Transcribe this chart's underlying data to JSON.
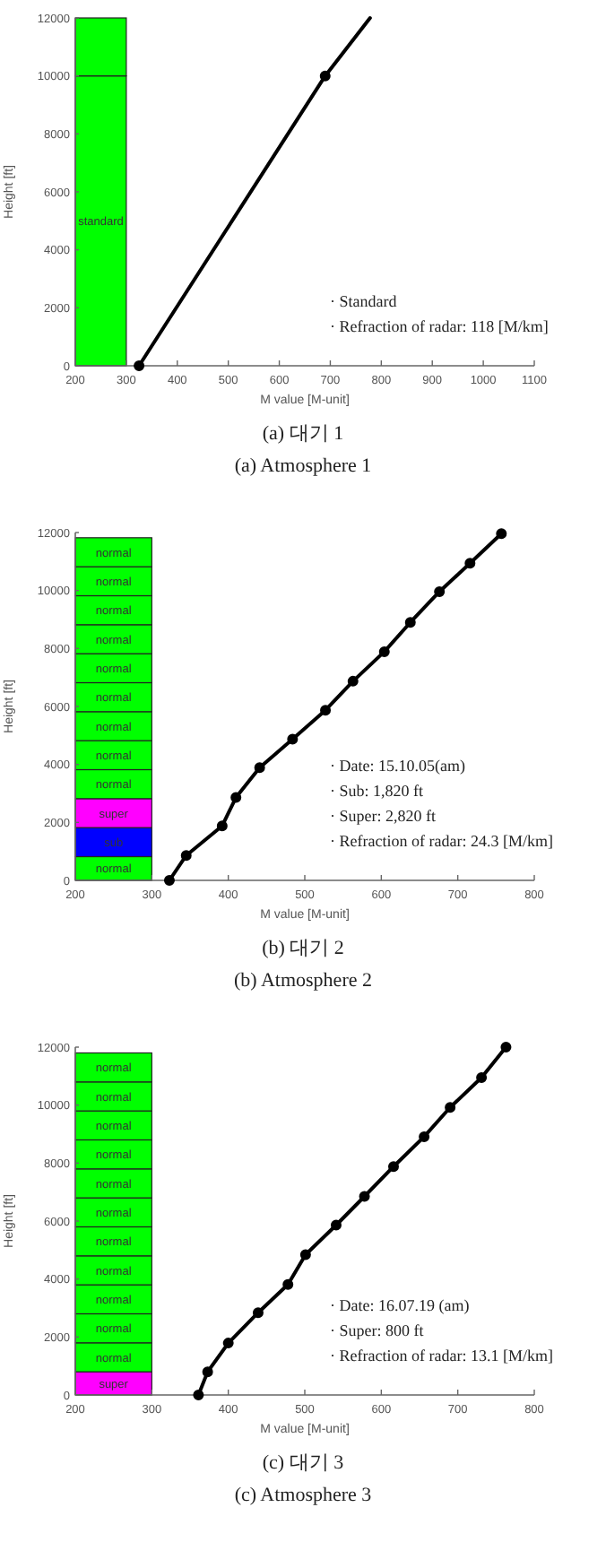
{
  "chart_data": [
    {
      "type": "line",
      "title": "(a) 대기 1",
      "subtitle": "(a) Atmosphere 1",
      "xlabel": "M value [M-unit]",
      "ylabel": "Height [ft]",
      "xlim": [
        200,
        1100
      ],
      "xticks": [
        200,
        300,
        400,
        500,
        600,
        700,
        800,
        900,
        1000,
        1100
      ],
      "ylim": [
        0,
        12000
      ],
      "yticks": [
        0,
        2000,
        4000,
        6000,
        8000,
        10000,
        12000
      ],
      "bands": [
        {
          "axis": "y",
          "from": 0,
          "to": 10000,
          "label": "standard",
          "color": "#00ff00"
        },
        {
          "axis": "y",
          "from": 10000,
          "to": 12000,
          "label": null,
          "color": "#00ff00"
        }
      ],
      "series": [
        {
          "type": "line",
          "color": "#000000",
          "marker": "none",
          "x": [
            325,
            690,
            778
          ],
          "values": [
            0,
            10000,
            12000
          ]
        },
        {
          "type": "scatter",
          "color": "#000000",
          "marker": "circle",
          "x": [
            325,
            690
          ],
          "values": [
            0,
            10000
          ]
        }
      ],
      "annotations": [
        "· Standard",
        "· Refraction of radar: 118 [M/km]"
      ]
    },
    {
      "type": "line",
      "title": "(b) 대기 2",
      "subtitle": "(b) Atmosphere 2",
      "xlabel": "M value [M-unit]",
      "ylabel": "Height [ft]",
      "xlim": [
        200,
        800
      ],
      "xticks": [
        200,
        300,
        400,
        500,
        600,
        700,
        800
      ],
      "ylim": [
        0,
        12000
      ],
      "yticks": [
        0,
        2000,
        4000,
        6000,
        8000,
        10000,
        12000
      ],
      "bands": [
        {
          "axis": "y",
          "from": 0,
          "to": 820,
          "label": "normal",
          "color": "#00ff00"
        },
        {
          "axis": "y",
          "from": 820,
          "to": 1820,
          "label": "sub",
          "color": "#0000ff"
        },
        {
          "axis": "y",
          "from": 1820,
          "to": 2820,
          "label": "super",
          "color": "#ff00ff"
        },
        {
          "axis": "y",
          "from": 2820,
          "to": 3820,
          "label": "normal",
          "color": "#00ff00"
        },
        {
          "axis": "y",
          "from": 3820,
          "to": 4820,
          "label": "normal",
          "color": "#00ff00"
        },
        {
          "axis": "y",
          "from": 4820,
          "to": 5820,
          "label": "normal",
          "color": "#00ff00"
        },
        {
          "axis": "y",
          "from": 5820,
          "to": 6820,
          "label": "normal",
          "color": "#00ff00"
        },
        {
          "axis": "y",
          "from": 6820,
          "to": 7820,
          "label": "normal",
          "color": "#00ff00"
        },
        {
          "axis": "y",
          "from": 7820,
          "to": 8820,
          "label": "normal",
          "color": "#00ff00"
        },
        {
          "axis": "y",
          "from": 8820,
          "to": 9820,
          "label": "normal",
          "color": "#00ff00"
        },
        {
          "axis": "y",
          "from": 9820,
          "to": 10820,
          "label": "normal",
          "color": "#00ff00"
        },
        {
          "axis": "y",
          "from": 10820,
          "to": 11820,
          "label": "normal",
          "color": "#00ff00"
        }
      ],
      "marker": "circle",
      "series": [
        {
          "type": "line",
          "color": "#000000",
          "x": [
            323,
            345,
            392,
            410,
            441,
            484,
            527,
            563,
            604,
            638,
            676,
            716,
            757
          ],
          "values": [
            0,
            860,
            1880,
            2860,
            3890,
            4870,
            5870,
            6870,
            7890,
            8900,
            9960,
            10940,
            11960
          ]
        }
      ],
      "annotations": [
        "· Date: 15.10.05(am)",
        "· Sub: 1,820 ft",
        "· Super: 2,820 ft",
        "· Refraction of radar: 24.3 [M/km]"
      ]
    },
    {
      "type": "line",
      "title": "(c) 대기 3",
      "subtitle": "(c) Atmosphere 3",
      "xlabel": "M value [M-unit]",
      "ylabel": "Height [ft]",
      "xlim": [
        200,
        800
      ],
      "xticks": [
        200,
        300,
        400,
        500,
        600,
        700,
        800
      ],
      "ylim": [
        0,
        12000
      ],
      "yticks": [
        0,
        2000,
        4000,
        6000,
        8000,
        10000,
        12000
      ],
      "bands": [
        {
          "axis": "y",
          "from": 0,
          "to": 800,
          "label": "super",
          "color": "#ff00ff"
        },
        {
          "axis": "y",
          "from": 800,
          "to": 1800,
          "label": "normal",
          "color": "#00ff00"
        },
        {
          "axis": "y",
          "from": 1800,
          "to": 2800,
          "label": "normal",
          "color": "#00ff00"
        },
        {
          "axis": "y",
          "from": 2800,
          "to": 3800,
          "label": "normal",
          "color": "#00ff00"
        },
        {
          "axis": "y",
          "from": 3800,
          "to": 4800,
          "label": "normal",
          "color": "#00ff00"
        },
        {
          "axis": "y",
          "from": 4800,
          "to": 5800,
          "label": "normal",
          "color": "#00ff00"
        },
        {
          "axis": "y",
          "from": 5800,
          "to": 6800,
          "label": "normal",
          "color": "#00ff00"
        },
        {
          "axis": "y",
          "from": 6800,
          "to": 7800,
          "label": "normal",
          "color": "#00ff00"
        },
        {
          "axis": "y",
          "from": 7800,
          "to": 8800,
          "label": "normal",
          "color": "#00ff00"
        },
        {
          "axis": "y",
          "from": 8800,
          "to": 9800,
          "label": "normal",
          "color": "#00ff00"
        },
        {
          "axis": "y",
          "from": 9800,
          "to": 10800,
          "label": "normal",
          "color": "#00ff00"
        },
        {
          "axis": "y",
          "from": 10800,
          "to": 11800,
          "label": "normal",
          "color": "#00ff00"
        }
      ],
      "marker": "circle",
      "series": [
        {
          "type": "line",
          "color": "#000000",
          "x": [
            361,
            373,
            400,
            439,
            478,
            501,
            541,
            578,
            616,
            656,
            690,
            731,
            763
          ],
          "values": [
            0,
            800,
            1790,
            2840,
            3810,
            4840,
            5860,
            6850,
            7880,
            8910,
            9920,
            10950,
            12000
          ]
        }
      ],
      "annotations": [
        "· Date: 16.07.19 (am)",
        "· Super: 800 ft",
        "· Refraction of radar: 13.1 [M/km]"
      ]
    }
  ]
}
